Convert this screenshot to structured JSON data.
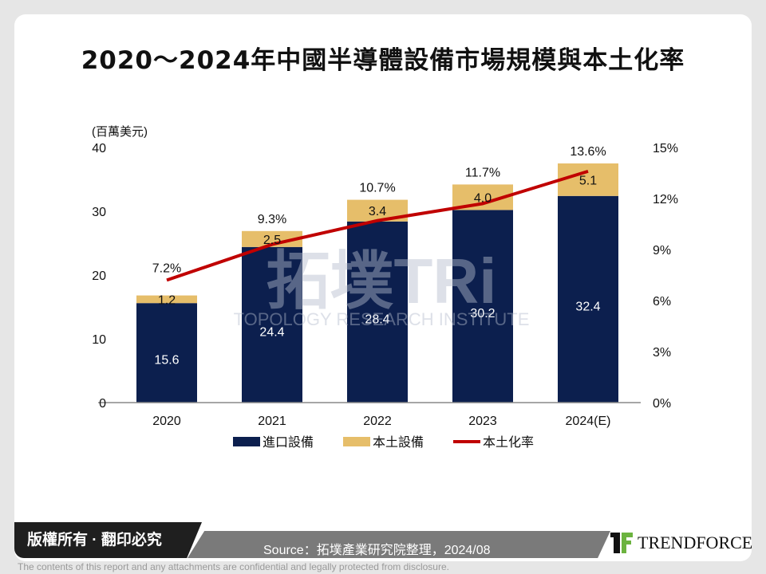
{
  "title": "2020～2024年中國半導體設備市場規模與本土化率",
  "chart_data": {
    "type": "bar",
    "stacked": true,
    "title": "2020～2024年中國半導體設備市場規模與本土化率",
    "ylabel": "(百萬美元)",
    "ylim": [
      0,
      40
    ],
    "yticks": [
      "0",
      "10",
      "20",
      "30",
      "40"
    ],
    "y2lim": [
      0,
      15
    ],
    "y2ticks": [
      "0%",
      "3%",
      "6%",
      "9%",
      "12%",
      "15%"
    ],
    "categories": [
      "2020",
      "2021",
      "2022",
      "2023",
      "2024(E)"
    ],
    "series": [
      {
        "name": "進口設備",
        "type": "bar",
        "color": "#0c1f4e",
        "values": [
          15.6,
          24.4,
          28.4,
          30.2,
          32.4
        ],
        "labels": [
          "15.6",
          "24.4",
          "28.4",
          "30.2",
          "32.4"
        ]
      },
      {
        "name": "本土設備",
        "type": "bar",
        "color": "#e6be6a",
        "values": [
          1.2,
          2.5,
          3.4,
          4.0,
          5.1
        ],
        "labels": [
          "1.2",
          "2.5",
          "3.4",
          "4.0",
          "5.1"
        ]
      },
      {
        "name": "本土化率",
        "type": "line",
        "axis": "right",
        "color": "#c00000",
        "values": [
          7.2,
          9.3,
          10.7,
          11.7,
          13.6
        ],
        "labels": [
          "7.2%",
          "9.3%",
          "10.7%",
          "11.7%",
          "13.6%"
        ]
      }
    ],
    "legend": "bottom",
    "grid": false
  },
  "watermark": {
    "text": "拓墣TRi",
    "subtext": "TOPOLOGY RESEARCH INSTITUTE"
  },
  "footer": {
    "copyright": "版權所有 · 翻印必究",
    "source": "Source：拓墣產業研究院整理，2024/08",
    "logo": "TRENDFORCE",
    "disclaimer": "The contents of this report and any attachments are confidential and legally protected from disclosure."
  }
}
